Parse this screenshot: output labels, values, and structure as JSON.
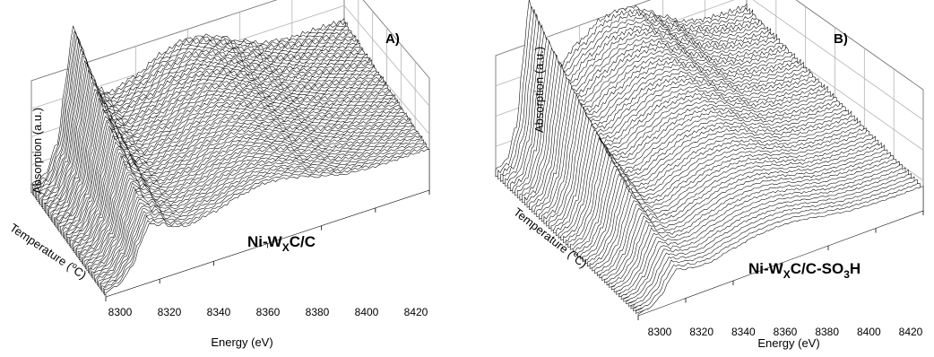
{
  "chart_data": [
    {
      "type": "line",
      "panel_label": "A)",
      "sample_label": {
        "base": "Ni-W",
        "sub": "X",
        "rest": "C/C"
      },
      "xlabel": "Energy (eV)",
      "ylabel": "Absorption (a.u.)",
      "zlabel": {
        "pre": "Temperature (",
        "sup": "o",
        "post": "C)"
      },
      "x_ticks": [
        "8300",
        "8320",
        "8340",
        "8360",
        "8380",
        "8400",
        "8420"
      ],
      "xlim": [
        8300,
        8420
      ],
      "n_spectra": 60,
      "grid": true,
      "series_profile": {
        "x": [
          8300,
          8305,
          8310,
          8313,
          8315,
          8316,
          8318,
          8320,
          8325,
          8330,
          8340,
          8350,
          8358,
          8365,
          8372,
          8380,
          8390,
          8400,
          8410,
          8420
        ],
        "y": [
          0.05,
          0.08,
          0.25,
          0.58,
          0.82,
          0.92,
          0.84,
          0.7,
          0.5,
          0.45,
          0.5,
          0.58,
          0.62,
          0.61,
          0.57,
          0.5,
          0.44,
          0.42,
          0.42,
          0.42
        ]
      }
    },
    {
      "type": "line",
      "panel_label": "B)",
      "sample_label": {
        "base": "Ni-W",
        "sub": "X",
        "rest": "C/C-SO",
        "sub2": "3",
        "rest2": "H"
      },
      "xlabel": "Energy (eV)",
      "ylabel": "Absorption (a.u.)",
      "zlabel": {
        "pre": "Temperature (",
        "sup": "o",
        "post": "C)"
      },
      "x_ticks": [
        "8300",
        "8320",
        "8340",
        "8360",
        "8380",
        "8400",
        "8420"
      ],
      "xlim": [
        8300,
        8420
      ],
      "n_spectra": 60,
      "grid": true,
      "series_profile": {
        "x": [
          8300,
          8305,
          8310,
          8313,
          8315,
          8316,
          8318,
          8320,
          8325,
          8330,
          8340,
          8350,
          8358,
          8365,
          8372,
          8380,
          8390,
          8400,
          8410,
          8420
        ],
        "y": [
          0.04,
          0.07,
          0.25,
          0.6,
          0.84,
          0.94,
          0.84,
          0.68,
          0.52,
          0.5,
          0.6,
          0.68,
          0.7,
          0.69,
          0.64,
          0.57,
          0.5,
          0.47,
          0.46,
          0.46
        ]
      }
    }
  ]
}
